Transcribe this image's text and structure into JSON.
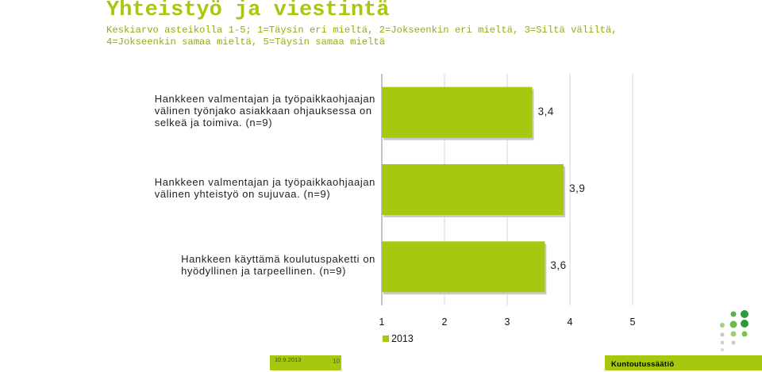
{
  "slide": {
    "title": "Yhteistyö ja viestintä",
    "subtitle_line1": "Keskiarvo asteikolla 1-5; 1=Täysin eri mieltä, 2=Jokseenkin eri mieltä, 3=Siltä väliltä,",
    "subtitle_line2": "4=Jokseenkin samaa mieltä, 5=Täysin samaa mieltä"
  },
  "chart_data": {
    "type": "bar",
    "orientation": "horizontal",
    "categories": [
      "Hankkeen valmentajan ja työpaikkaohjaajan välinen työnjako asiakkaan ohjauksessa on selkeä ja toimiva. (n=9)",
      "Hankkeen valmentajan ja työpaikkaohjaajan välinen yhteistyö on sujuvaa. (n=9)",
      "Hankkeen käyttämä koulutuspaketti on hyödyllinen ja tarpeellinen. (n=9)"
    ],
    "category_lines": [
      [
        "Hankkeen valmentajan ja työpaikkaohjaajan",
        "välinen työnjako asiakkaan ohjauksessa on",
        "selkeä ja toimiva. (n=9)"
      ],
      [
        "Hankkeen valmentajan ja työpaikkaohjaajan",
        "välinen yhteistyö on sujuvaa. (n=9)"
      ],
      [
        "Hankkeen käyttämä koulutuspaketti on",
        "hyödyllinen ja tarpeellinen. (n=9)"
      ]
    ],
    "series": [
      {
        "name": "2013",
        "values": [
          3.4,
          3.9,
          3.6
        ],
        "labels": [
          "3,4",
          "3,9",
          "3,6"
        ],
        "color": "#a6c80e"
      }
    ],
    "xlim": [
      1,
      5
    ],
    "xticks": [
      "1",
      "2",
      "3",
      "4",
      "5"
    ],
    "grid": true,
    "legend_position": "bottom"
  },
  "footer": {
    "date": "10.9.2013",
    "page": "10",
    "brand": "Kuntoutussäätiö",
    "color": "#a6c80e"
  }
}
